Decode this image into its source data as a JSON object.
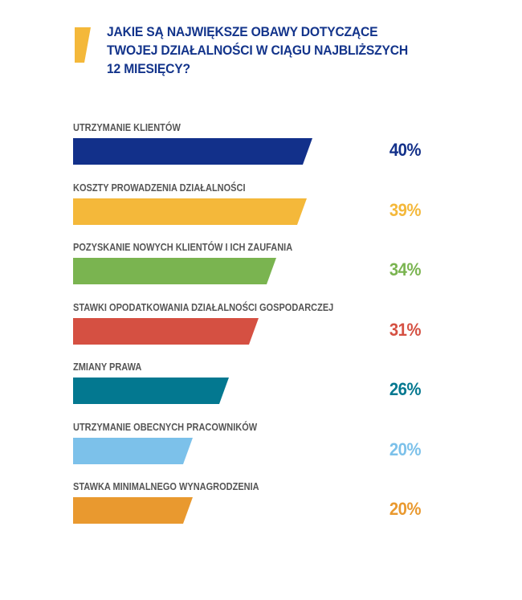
{
  "chart_data": {
    "type": "bar",
    "orientation": "horizontal",
    "title": "JAKIE SĄ NAJWIĘKSZE OBAWY DOTYCZĄCE TWOJEJ DZIAŁALNOŚCI W CIĄGU NAJBLIŻSZYCH 12 MIESIĘCY?",
    "title_lines": [
      "JAKIE SĄ NAJWIĘKSZE OBAWY DOTYCZĄCE",
      "TWOJEJ DZIAŁALNOŚCI W CIĄGU NAJBLIŻSZYCH",
      "12 MIESIĘCY?"
    ],
    "categories": [
      "UTRZYMANIE KLIENTÓW",
      "KOSZTY PROWADZENIA DZIAŁALNOŚCI",
      "POZYSKANIE NOWYCH KLIENTÓW I ICH ZAUFANIA",
      "STAWKI OPODATKOWANIA DZIAŁALNOŚCI GOSPODARCZEJ",
      "ZMIANY PRAWA",
      "UTRZYMANIE OBECNYCH PRACOWNIKÓW",
      "STAWKA MINIMALNEGO WYNAGRODZENIA"
    ],
    "values": [
      40,
      39,
      34,
      31,
      26,
      20,
      20
    ],
    "value_labels": [
      "40%",
      "39%",
      "34%",
      "31%",
      "26%",
      "20%",
      "20%"
    ],
    "colors": [
      "#12308a",
      "#f4b83a",
      "#7ab450",
      "#d55042",
      "#037890",
      "#7cc1ea",
      "#e9992f"
    ],
    "accent_color": "#f4b83a",
    "title_color": "#13348b",
    "label_color": "#555555",
    "unit": "%",
    "xlim": [
      0,
      40
    ]
  }
}
